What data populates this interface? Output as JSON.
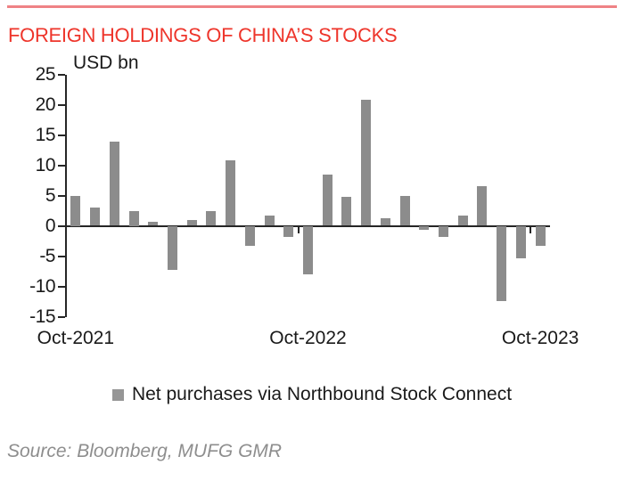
{
  "page": {
    "background": "#ffffff",
    "colors": {
      "title_red": "#ee352b",
      "rule_red": "#ef8285",
      "bar_gray": "#8c8c8c",
      "legend_swatch_gray": "#969696",
      "axis_black": "#262626",
      "source_gray": "#8e8e8e"
    }
  },
  "chart_data": {
    "type": "bar",
    "title": "FOREIGN HOLDINGS OF CHINA’S STOCKS",
    "ylabel": "USD bn",
    "xlabel": "",
    "categories": [
      "Oct-2021",
      "Nov-2021",
      "Dec-2021",
      "Jan-2022",
      "Feb-2022",
      "Mar-2022",
      "Apr-2022",
      "May-2022",
      "Jun-2022",
      "Jul-2022",
      "Aug-2022",
      "Sep-2022",
      "Oct-2022",
      "Nov-2022",
      "Dec-2022",
      "Jan-2023",
      "Feb-2023",
      "Mar-2023",
      "Apr-2023",
      "May-2023",
      "Jun-2023",
      "Jul-2023",
      "Aug-2023",
      "Sep-2023",
      "Oct-2023"
    ],
    "series": [
      {
        "name": "Net purchases via Northbound Stock Connect",
        "values": [
          5.0,
          3.0,
          13.9,
          2.5,
          0.6,
          -7.2,
          0.9,
          2.4,
          10.8,
          -3.2,
          1.7,
          -1.7,
          -8.0,
          8.4,
          4.8,
          20.8,
          1.3,
          4.9,
          -0.6,
          -1.7,
          1.7,
          6.5,
          -12.4,
          -5.3,
          -3.3
        ]
      }
    ],
    "ylim": [
      -15,
      25
    ],
    "yticks": [
      25,
      20,
      15,
      10,
      5,
      0,
      -5,
      -10,
      -15
    ],
    "xtick_labels": [
      {
        "label": "Oct-2021",
        "index": 0
      },
      {
        "label": "Oct-2022",
        "index": 12
      },
      {
        "label": "Oct-2023",
        "index": 24
      }
    ],
    "grid": false,
    "legend": [
      "Net purchases via Northbound Stock Connect"
    ],
    "legend_position": "bottom",
    "bar_color": "#8c8c8c",
    "source": "Source: Bloomberg, MUFG GMR"
  }
}
